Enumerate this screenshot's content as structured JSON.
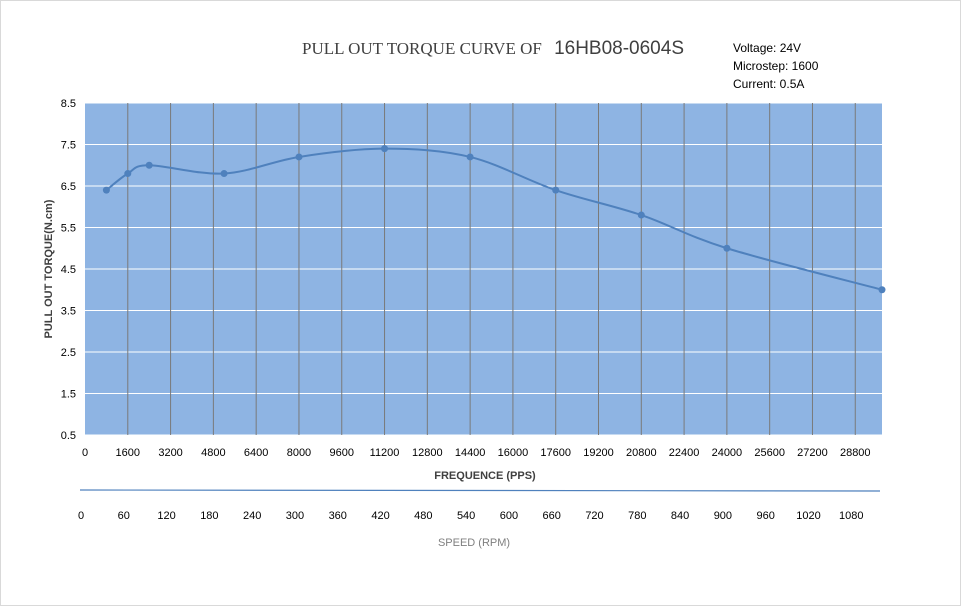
{
  "chart_data": {
    "type": "line",
    "title_prefix": "PULL OUT TORQUE CURVE OF",
    "title_model": "16HB08-0604S",
    "info": [
      "Voltage: 24V",
      "Microstep: 1600",
      "Current: 0.5A"
    ],
    "xlabel": "FREQUENCE (PPS)",
    "ylabel": "PULL OUT TORQUE(N.cm)",
    "secondary_xlabel": "SPEED (RPM)",
    "xlim": [
      0,
      29800
    ],
    "ylim": [
      0.5,
      8.5
    ],
    "x_ticks": [
      "0",
      "1600",
      "3200",
      "4800",
      "6400",
      "8000",
      "9600",
      "11200",
      "12800",
      "14400",
      "16000",
      "17600",
      "19200",
      "20800",
      "22400",
      "24000",
      "25600",
      "27200",
      "28800"
    ],
    "y_ticks": [
      "8.5",
      "7.5",
      "6.5",
      "5.5",
      "4.5",
      "3.5",
      "2.5",
      "1.5",
      "0.5"
    ],
    "rpm_ticks": [
      "0",
      "60",
      "120",
      "180",
      "240",
      "300",
      "360",
      "420",
      "480",
      "540",
      "600",
      "660",
      "720",
      "780",
      "840",
      "900",
      "960",
      "1020",
      "1080"
    ],
    "grid": true,
    "colors": {
      "plot_bg": "#8eb4e3",
      "line": "#4f81bd",
      "grid": "#ffffff",
      "vgrid": "#7a7a7a",
      "rule": "#4f81bd"
    },
    "series": [
      {
        "x": [
          800,
          1600,
          2400,
          5200,
          8000,
          11200,
          14400,
          17600,
          20800,
          24000,
          29800
        ],
        "values": [
          6.4,
          6.8,
          7.0,
          6.8,
          7.2,
          7.4,
          7.2,
          6.4,
          5.8,
          5.0,
          4.0
        ]
      }
    ]
  }
}
